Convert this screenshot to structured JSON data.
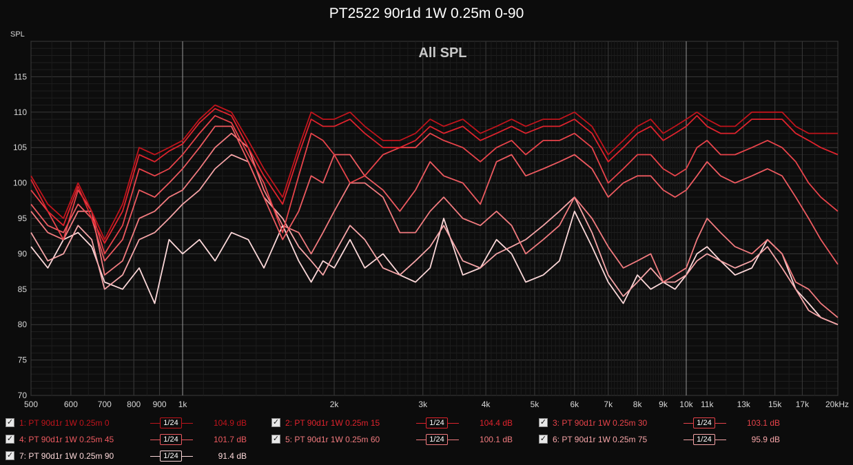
{
  "window": {
    "title": "PT2522 90r1d 1W 0.25m 0-90"
  },
  "chart_data": {
    "type": "line",
    "title": "PT2522 90r1d 1W 0.25m 0-90",
    "subtitle": "All SPL",
    "ylabel": "SPL",
    "xlabel": "",
    "x_scale": "log",
    "xlim": [
      500,
      20000
    ],
    "ylim": [
      70,
      120
    ],
    "yticks": [
      70,
      75,
      80,
      85,
      90,
      95,
      100,
      105,
      110,
      115
    ],
    "xticks": [
      {
        "value": 500,
        "label": "500"
      },
      {
        "value": 600,
        "label": "600"
      },
      {
        "value": 700,
        "label": "700"
      },
      {
        "value": 800,
        "label": "800"
      },
      {
        "value": 900,
        "label": "900"
      },
      {
        "value": 1000,
        "label": "1k"
      },
      {
        "value": 2000,
        "label": "2k"
      },
      {
        "value": 3000,
        "label": "3k"
      },
      {
        "value": 4000,
        "label": "4k"
      },
      {
        "value": 5000,
        "label": "5k"
      },
      {
        "value": 6000,
        "label": "6k"
      },
      {
        "value": 7000,
        "label": "7k"
      },
      {
        "value": 8000,
        "label": "8k"
      },
      {
        "value": 9000,
        "label": "9k"
      },
      {
        "value": 10000,
        "label": "10k"
      },
      {
        "value": 11000,
        "label": "11k"
      },
      {
        "value": 13000,
        "label": "13k"
      },
      {
        "value": 15000,
        "label": "15k"
      },
      {
        "value": 17000,
        "label": "17k"
      },
      {
        "value": 20000,
        "label": "20kHz"
      }
    ],
    "grid": true,
    "legend_position": "bottom",
    "series": [
      {
        "name": "1: PT 90d1r 1W 0.25m 0",
        "color": "#c0141c",
        "smoothing": "1/24",
        "level": "104.9 dB",
        "x": [
          500,
          540,
          580,
          620,
          660,
          700,
          760,
          820,
          880,
          940,
          1000,
          1080,
          1160,
          1250,
          1350,
          1450,
          1580,
          1700,
          1800,
          1900,
          2000,
          2150,
          2300,
          2500,
          2700,
          2900,
          3100,
          3300,
          3600,
          3900,
          4200,
          4500,
          4800,
          5200,
          5600,
          6000,
          6500,
          7000,
          7500,
          8000,
          8500,
          9000,
          9500,
          10000,
          10500,
          11000,
          11700,
          12500,
          13500,
          14500,
          15500,
          16500,
          17500,
          18500,
          20000
        ],
        "y": [
          101,
          97,
          95,
          100,
          96,
          92,
          97,
          105,
          104,
          105,
          106,
          109,
          111,
          110,
          106,
          102,
          98,
          105,
          110,
          109,
          109,
          110,
          108,
          106,
          106,
          107,
          109,
          108,
          109,
          107,
          108,
          109,
          108,
          109,
          109,
          110,
          108,
          104,
          106,
          108,
          109,
          107,
          108,
          109,
          110,
          109,
          108,
          108,
          110,
          110,
          110,
          108,
          107,
          107,
          107
        ]
      },
      {
        "name": "2: PT 90d1r 1W 0.25m 15",
        "color": "#e0232d",
        "smoothing": "1/24",
        "level": "104.4 dB",
        "x": [
          500,
          540,
          580,
          620,
          660,
          700,
          760,
          820,
          880,
          940,
          1000,
          1080,
          1160,
          1250,
          1350,
          1450,
          1580,
          1700,
          1800,
          1900,
          2000,
          2150,
          2300,
          2500,
          2700,
          2900,
          3100,
          3300,
          3600,
          3900,
          4200,
          4500,
          4800,
          5200,
          5600,
          6000,
          6500,
          7000,
          7500,
          8000,
          8500,
          9000,
          9500,
          10000,
          10500,
          11000,
          11700,
          12500,
          13500,
          14500,
          15500,
          16500,
          17500,
          18500,
          20000
        ],
        "y": [
          100.5,
          96,
          94,
          99.5,
          95,
          91.5,
          96,
          104,
          103,
          104.5,
          105.5,
          108.5,
          110.5,
          109.5,
          105,
          101,
          97,
          104,
          109,
          108,
          108,
          109,
          107,
          105,
          105,
          106,
          108,
          107,
          108,
          106,
          107,
          108,
          107,
          108,
          108,
          109,
          107,
          103,
          105,
          107,
          108,
          106,
          107,
          108,
          109.5,
          108,
          107,
          107,
          109,
          109,
          109,
          107,
          106,
          105,
          104
        ]
      },
      {
        "name": "3: PT 90d1r 1W 0.25m 30",
        "color": "#e8434a",
        "smoothing": "1/24",
        "level": "103.1 dB",
        "x": [
          500,
          540,
          580,
          620,
          660,
          700,
          760,
          820,
          880,
          940,
          1000,
          1080,
          1160,
          1250,
          1350,
          1450,
          1580,
          1700,
          1800,
          1900,
          2000,
          2150,
          2300,
          2500,
          2700,
          2900,
          3100,
          3300,
          3600,
          3900,
          4200,
          4500,
          4800,
          5200,
          5600,
          6000,
          6500,
          7000,
          7500,
          8000,
          8500,
          9000,
          9500,
          10000,
          10500,
          11000,
          11700,
          12500,
          13500,
          14500,
          15500,
          16500,
          17500,
          18500,
          20000
        ],
        "y": [
          99,
          96,
          92,
          99,
          96,
          90,
          94,
          102,
          101,
          102,
          104,
          107,
          109.5,
          108.5,
          104,
          100,
          93,
          101,
          107,
          106,
          104,
          100,
          101,
          104,
          105,
          105,
          107,
          106,
          105,
          103,
          105,
          106,
          104,
          106,
          106,
          107,
          105,
          100,
          102,
          104,
          104,
          102,
          101,
          102,
          105,
          106,
          104,
          104,
          105,
          106,
          105,
          103,
          100,
          98,
          96
        ]
      },
      {
        "name": "4: PT 90d1r 1W 0.25m 45",
        "color": "#ee5a60",
        "smoothing": "1/24",
        "level": "101.7 dB",
        "x": [
          500,
          540,
          580,
          620,
          660,
          700,
          760,
          820,
          880,
          940,
          1000,
          1080,
          1160,
          1250,
          1350,
          1450,
          1580,
          1700,
          1800,
          1900,
          2000,
          2150,
          2300,
          2500,
          2700,
          2900,
          3100,
          3300,
          3600,
          3900,
          4200,
          4500,
          4800,
          5200,
          5600,
          6000,
          6500,
          7000,
          7500,
          8000,
          8500,
          9000,
          9500,
          10000,
          10500,
          11000,
          11700,
          12500,
          13500,
          14500,
          15500,
          16500,
          17500,
          18500,
          20000
        ],
        "y": [
          97,
          94,
          93,
          97,
          95,
          89,
          92,
          99,
          98,
          100,
          102,
          105,
          108,
          108,
          103,
          98,
          92,
          96,
          101,
          100,
          104,
          104,
          101,
          99,
          96,
          99,
          103,
          101,
          100,
          97,
          103,
          104,
          101,
          102,
          103,
          104,
          102,
          98,
          100,
          101,
          101,
          99,
          98,
          99,
          101,
          103,
          101,
          100,
          101,
          102,
          101,
          98,
          95,
          92,
          88.5
        ]
      },
      {
        "name": "5: PT 90d1r 1W 0.25m 60",
        "color": "#f27b7f",
        "smoothing": "1/24",
        "level": "100.1 dB",
        "x": [
          500,
          540,
          580,
          620,
          660,
          700,
          760,
          820,
          880,
          940,
          1000,
          1080,
          1160,
          1250,
          1350,
          1450,
          1580,
          1700,
          1800,
          1900,
          2000,
          2150,
          2300,
          2500,
          2700,
          2900,
          3100,
          3300,
          3600,
          3900,
          4200,
          4500,
          4800,
          5200,
          5600,
          6000,
          6500,
          7000,
          7500,
          8000,
          8500,
          9000,
          9500,
          10000,
          10500,
          11000,
          11700,
          12500,
          13500,
          14500,
          15500,
          16500,
          17500,
          18500,
          20000
        ],
        "y": [
          96,
          93,
          92,
          96,
          96,
          87,
          89,
          95,
          96,
          98,
          99,
          102,
          105,
          107,
          105,
          99,
          94,
          93,
          90,
          93,
          96,
          100,
          100,
          98,
          93,
          93,
          96,
          98,
          95,
          94,
          96,
          94,
          90,
          92,
          94,
          98,
          95,
          91,
          88,
          89,
          90,
          86,
          87,
          88,
          92,
          95,
          93,
          91,
          90,
          92,
          90,
          86,
          85,
          83,
          81
        ]
      },
      {
        "name": "6: PT 90d1r 1W 0.25m 75",
        "color": "#f7a5a8",
        "smoothing": "1/24",
        "level": "95.9 dB",
        "x": [
          500,
          540,
          580,
          620,
          660,
          700,
          760,
          820,
          880,
          940,
          1000,
          1080,
          1160,
          1250,
          1350,
          1450,
          1580,
          1700,
          1800,
          1900,
          2000,
          2150,
          2300,
          2500,
          2700,
          2900,
          3100,
          3300,
          3600,
          3900,
          4200,
          4500,
          4800,
          5200,
          5600,
          6000,
          6500,
          7000,
          7500,
          8000,
          8500,
          9000,
          9500,
          10000,
          10500,
          11000,
          11700,
          12500,
          13500,
          14500,
          15500,
          16500,
          17500,
          18500,
          20000
        ],
        "y": [
          93,
          89,
          90,
          94,
          92,
          85,
          87,
          92,
          93,
          95,
          97,
          99,
          102,
          104,
          103,
          98,
          95,
          91,
          89,
          87,
          90,
          94,
          92,
          88,
          87,
          89,
          91,
          94,
          89,
          88,
          90,
          91,
          92,
          94,
          96,
          98,
          93,
          87,
          84,
          86,
          88,
          86,
          86,
          87,
          89,
          90,
          89,
          88,
          89,
          91,
          88,
          85,
          82,
          81,
          80
        ]
      },
      {
        "name": "7: PT 90d1r 1W 0.25m 90",
        "color": "#fcd8d9",
        "smoothing": "1/24",
        "level": "91.4 dB",
        "x": [
          500,
          540,
          580,
          620,
          660,
          700,
          760,
          820,
          880,
          940,
          1000,
          1080,
          1160,
          1250,
          1350,
          1450,
          1580,
          1700,
          1800,
          1900,
          2000,
          2150,
          2300,
          2500,
          2700,
          2900,
          3100,
          3300,
          3600,
          3900,
          4200,
          4500,
          4800,
          5200,
          5600,
          6000,
          6500,
          7000,
          7500,
          8000,
          8500,
          9000,
          9500,
          10000,
          10500,
          11000,
          11700,
          12500,
          13500,
          14500,
          15500,
          16500,
          17500,
          18500,
          20000
        ],
        "y": [
          91,
          88,
          92,
          93,
          91,
          86,
          85,
          88,
          83,
          92,
          90,
          92,
          89,
          93,
          92,
          88,
          94,
          89,
          86,
          89,
          88,
          92,
          88,
          90,
          87,
          86,
          88,
          95,
          87,
          88,
          92,
          90,
          86,
          87,
          89,
          96,
          91,
          86,
          83,
          87,
          85,
          86,
          85,
          87,
          90,
          91,
          89,
          87,
          88,
          92,
          90,
          85,
          83,
          81,
          80
        ]
      }
    ]
  }
}
